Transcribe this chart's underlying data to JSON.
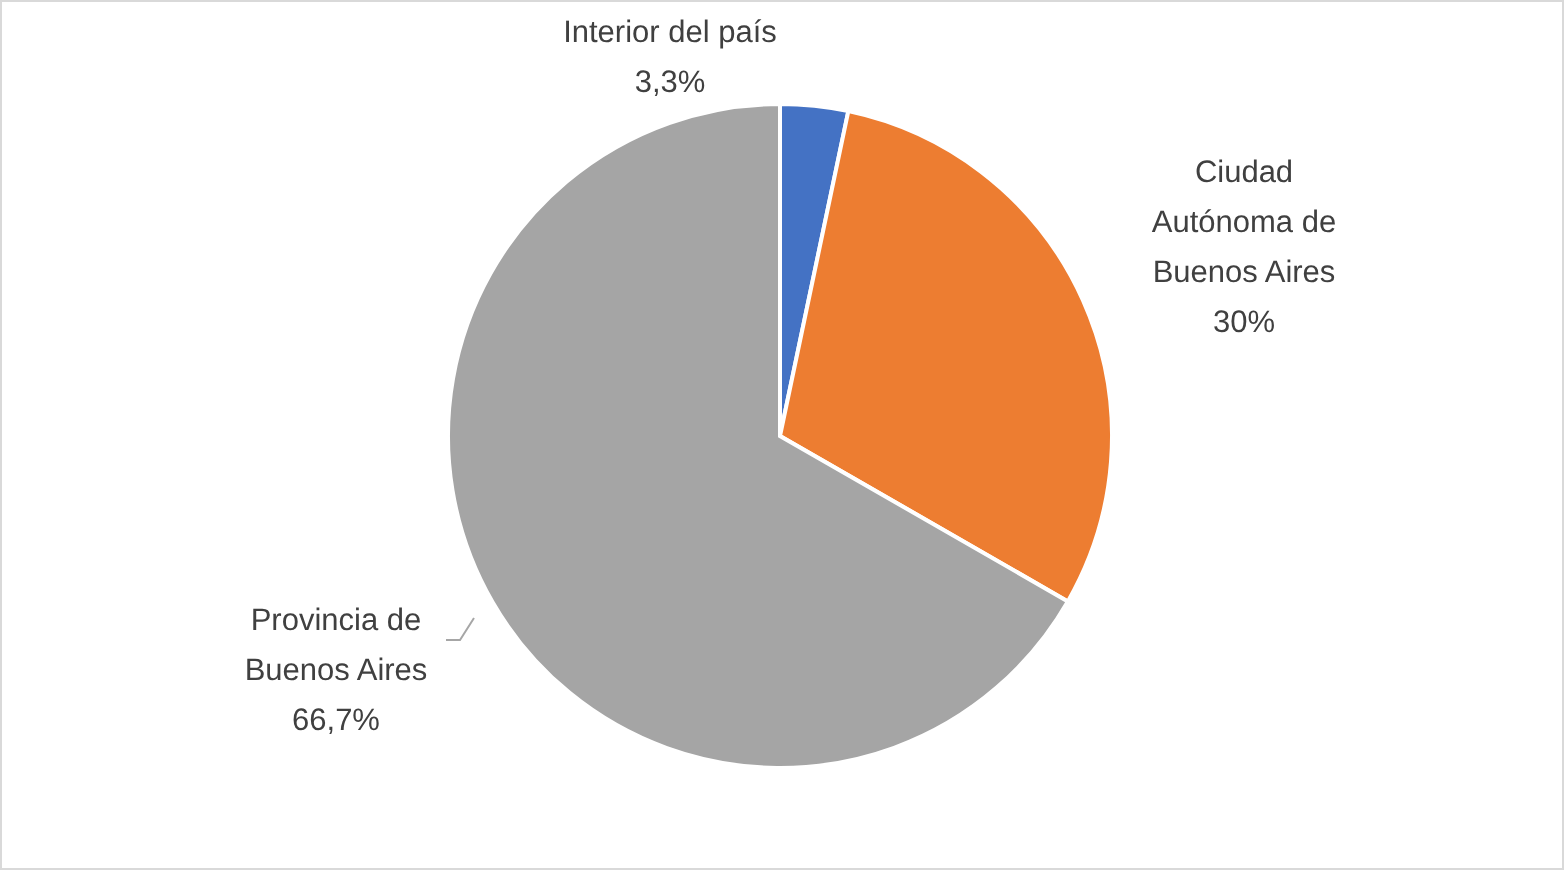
{
  "chart_data": {
    "type": "pie",
    "categories": [
      "Interior del país",
      "Ciudad Autónoma de Buenos Aires",
      "Provincia de Buenos Aires"
    ],
    "values": [
      3.3,
      30,
      66.7
    ],
    "colors": [
      "#4472c4",
      "#ed7d31",
      "#a5a5a5"
    ],
    "value_labels": [
      "3,3%",
      "30%",
      "66,7%"
    ]
  }
}
